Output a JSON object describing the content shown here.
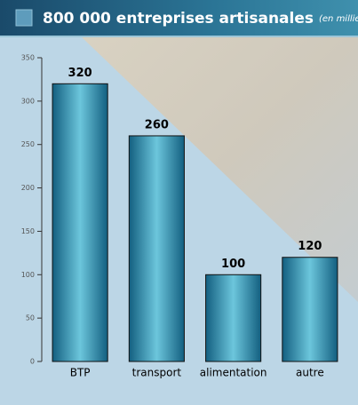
{
  "chart_data": {
    "type": "bar",
    "title": "800 000 entreprises artisanales",
    "subtitle": "(en milliers)",
    "categories": [
      "BTP",
      "transport",
      "alimentation",
      "autre"
    ],
    "values": [
      320,
      260,
      100,
      120
    ],
    "color": "#2a86a6",
    "ylim": [
      0,
      350
    ],
    "yticks": [
      0,
      50,
      100,
      150,
      200,
      250,
      300,
      350
    ],
    "grid": false
  }
}
